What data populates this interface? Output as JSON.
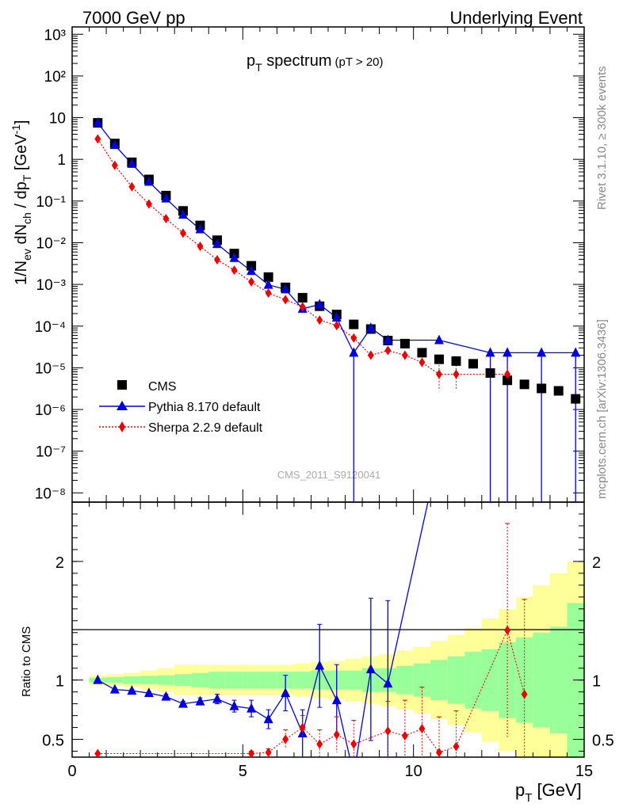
{
  "header": {
    "left": "7000 GeV pp",
    "right": "Underlying Event"
  },
  "side_labels": {
    "rivet": "Rivet 3.1.10, ≥ 300k events",
    "mcplots": "mcplots.cern.ch [arXiv:1306.3436]"
  },
  "watermark": "CMS_2011_S9120041",
  "colors": {
    "cms": "#000000",
    "pythia": "#0000dd",
    "sherpa": "#ee0000",
    "band_inner": "#99ff99",
    "band_outer": "#ffff99"
  },
  "chart_data": [
    {
      "type": "scatter",
      "title": "p_T spectrum (pT > 20)",
      "title_main": "p",
      "title_sub": "T",
      "title_rest": " spectrum",
      "title_cut": "(pT > 20)",
      "ylabel": "1/N_ev dN_ch / dp_T [GeV^-1]",
      "yscale": "log",
      "xlim": [
        0,
        15
      ],
      "ylim": [
        6e-09,
        1500
      ],
      "ytick_labels": [
        "10⁻⁸",
        "10⁻⁷",
        "10⁻⁶",
        "10⁻⁵",
        "10⁻⁴",
        "10⁻³",
        "10⁻²",
        "10⁻¹",
        "1",
        "10",
        "10²",
        "10³"
      ],
      "legend_position": "bottom-left",
      "series": [
        {
          "name": "CMS",
          "x": [
            0.75,
            1.25,
            1.75,
            2.25,
            2.75,
            3.25,
            3.75,
            4.25,
            4.75,
            5.25,
            5.75,
            6.25,
            6.75,
            7.25,
            7.75,
            8.25,
            8.75,
            9.25,
            9.75,
            10.25,
            10.75,
            11.25,
            11.75,
            12.25,
            12.75,
            13.25,
            13.75,
            14.25,
            14.75
          ],
          "y": [
            7.5,
            2.4,
            0.85,
            0.33,
            0.135,
            0.058,
            0.026,
            0.0115,
            0.0055,
            0.0028,
            0.0015,
            0.00085,
            0.00048,
            0.0003,
            0.00019,
            0.00011,
            8.5e-05,
            4.5e-05,
            3.8e-05,
            2.3e-05,
            1.6e-05,
            1.45e-05,
            1.25e-05,
            7.5e-06,
            5e-06,
            4e-06,
            3.2e-06,
            2.8e-06,
            1.8e-06
          ]
        },
        {
          "name": "Pythia 8.170 default",
          "x": [
            0.75,
            1.25,
            1.75,
            2.25,
            2.75,
            3.25,
            3.75,
            4.25,
            4.75,
            5.25,
            5.75,
            6.25,
            6.75,
            7.25,
            7.75,
            8.25,
            8.75,
            9.25,
            10.75,
            12.25,
            12.75,
            13.75,
            14.75
          ],
          "y": [
            7.5,
            2.2,
            0.78,
            0.29,
            0.115,
            0.047,
            0.021,
            0.0093,
            0.0043,
            0.0021,
            0.00098,
            0.00076,
            0.00026,
            0.00033,
            0.00016,
            2.3e-05,
            9e-05,
            4.6e-05,
            4.6e-05,
            2.3e-05,
            2.3e-05,
            2.3e-05,
            2.3e-05
          ]
        },
        {
          "name": "Sherpa 2.2.9 default",
          "x": [
            0.75,
            1.25,
            1.75,
            2.25,
            2.75,
            3.25,
            3.75,
            4.25,
            4.75,
            5.25,
            5.75,
            6.25,
            6.75,
            7.25,
            7.75,
            8.25,
            8.75,
            9.25,
            9.75,
            10.25,
            10.75,
            11.25,
            12.75
          ],
          "y": [
            3.1,
            0.72,
            0.22,
            0.085,
            0.038,
            0.017,
            0.0082,
            0.0039,
            0.0022,
            0.00115,
            0.00062,
            0.00043,
            0.00029,
            0.00014,
            0.000103,
            5.2e-05,
            2e-05,
            2.6e-05,
            2e-05,
            1.35e-05,
            7e-06,
            7e-06,
            7e-06
          ]
        }
      ]
    },
    {
      "type": "line",
      "ylabel": "Ratio to CMS",
      "xlabel": "p_T [GeV]",
      "xlim": [
        0,
        15
      ],
      "ylim": [
        0.35,
        2.5
      ],
      "xtick_labels": [
        "0",
        "5",
        "10",
        "15"
      ],
      "ytick_labels": [
        "0.5",
        "1",
        "2"
      ],
      "band_edges": [
        0.5,
        1,
        1.5,
        2,
        2.5,
        3,
        3.5,
        4,
        4.5,
        5,
        5.5,
        6,
        6.5,
        7,
        7.5,
        8,
        8.5,
        9,
        9.5,
        10,
        10.5,
        11,
        11.5,
        12,
        12.5,
        13,
        13.5,
        14,
        14.5,
        15
      ],
      "band_inner": [
        0.02,
        0.025,
        0.03,
        0.035,
        0.04,
        0.05,
        0.06,
        0.07,
        0.07,
        0.07,
        0.07,
        0.07,
        0.07,
        0.08,
        0.08,
        0.08,
        0.1,
        0.1,
        0.12,
        0.14,
        0.17,
        0.2,
        0.24,
        0.26,
        0.32,
        0.36,
        0.4,
        0.45,
        0.65
      ],
      "band_outer": [
        0.04,
        0.05,
        0.06,
        0.08,
        0.1,
        0.13,
        0.13,
        0.13,
        0.13,
        0.13,
        0.13,
        0.13,
        0.14,
        0.15,
        0.16,
        0.18,
        0.2,
        0.22,
        0.25,
        0.28,
        0.33,
        0.38,
        0.44,
        0.52,
        0.6,
        0.7,
        0.8,
        0.9,
        1.0
      ],
      "series": [
        {
          "name": "Pythia 8.170 default",
          "x": [
            0.75,
            1.25,
            1.75,
            2.25,
            2.75,
            3.25,
            3.75,
            4.25,
            4.75,
            5.25,
            5.75,
            6.25,
            6.75,
            7.25,
            7.75,
            8.25,
            8.75,
            9.25,
            10.5
          ],
          "y": [
            1.0,
            0.92,
            0.91,
            0.89,
            0.86,
            0.8,
            0.82,
            0.84,
            0.78,
            0.76,
            0.67,
            0.89,
            0.55,
            1.12,
            0.83,
            0.2,
            1.09,
            0.97,
            2.6
          ],
          "err": [
            0,
            0.01,
            0.01,
            0.01,
            0.02,
            0.02,
            0.03,
            0.04,
            0.05,
            0.07,
            0.08,
            0.15,
            0.2,
            0.35,
            0.3,
            0,
            0.6,
            0.7,
            0
          ]
        },
        {
          "name": "Sherpa 2.2.9 default",
          "x": [
            0.75,
            5.25,
            5.75,
            6.25,
            6.75,
            7.25,
            7.75,
            8.25,
            9.25,
            9.75,
            10.25,
            10.75,
            11.25,
            12.75,
            13.25
          ],
          "y": [
            0.38,
            0.38,
            0.39,
            0.5,
            0.6,
            0.46,
            0.54,
            0.46,
            0.57,
            0.53,
            0.59,
            0.39,
            0.44,
            1.42,
            0.88
          ],
          "err": [
            0,
            0.02,
            0.03,
            0.08,
            0.1,
            0.12,
            0.15,
            0.2,
            0.25,
            0.3,
            0.35,
            0.3,
            0.3,
            0.9,
            0.8
          ]
        }
      ]
    }
  ]
}
